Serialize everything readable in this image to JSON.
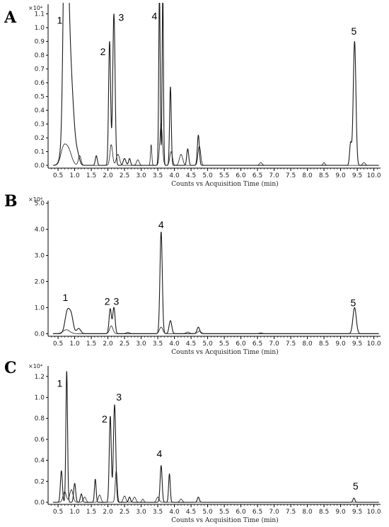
{
  "chart_data": [
    {
      "panel": "A",
      "type": "line",
      "multiplier": "×10⁴",
      "xlabel": "Counts vs Acquisition Time (min)",
      "xlim": [
        0.2,
        10.2
      ],
      "ylim": [
        -0.02,
        1.17
      ],
      "xticks": [
        "0.5",
        "1.0",
        "1.5",
        "2.0",
        "2.5",
        "3.0",
        "3.5",
        "4.0",
        "4.5",
        "5.0",
        "5.5",
        "6.0",
        "6.5",
        "7.0",
        "7.5",
        "8.0",
        "8.5",
        "9.0",
        "9.5",
        "10.0"
      ],
      "yticks": [
        "0.0",
        "0.1",
        "0.2",
        "0.3",
        "0.4",
        "0.5",
        "0.6",
        "0.7",
        "0.8",
        "0.9",
        "1.0",
        "1.1"
      ],
      "peak_labels": [
        {
          "text": "1",
          "x": 0.55,
          "y": 1.03
        },
        {
          "text": "2",
          "x": 1.85,
          "y": 0.8
        },
        {
          "text": "3",
          "x": 2.4,
          "y": 1.05
        },
        {
          "text": "4",
          "x": 3.4,
          "y": 1.06
        },
        {
          "text": "5",
          "x": 9.4,
          "y": 0.95
        }
      ],
      "series": [
        {
          "peaks": [
            [
              0.7,
              0.92,
              0.05
            ],
            [
              0.75,
              0.95,
              0.06
            ],
            [
              0.82,
              0.85,
              0.12
            ],
            [
              1.1,
              0.04,
              0.05
            ],
            [
              1.65,
              0.07,
              0.03
            ],
            [
              2.05,
              0.9,
              0.03
            ],
            [
              2.18,
              1.1,
              0.035
            ],
            [
              2.5,
              0.05,
              0.04
            ],
            [
              2.65,
              0.05,
              0.03
            ],
            [
              3.55,
              1.25,
              0.022
            ],
            [
              3.65,
              1.25,
              0.02
            ],
            [
              3.88,
              0.57,
              0.025
            ],
            [
              4.4,
              0.12,
              0.03
            ],
            [
              4.72,
              0.22,
              0.03
            ],
            [
              9.3,
              0.16,
              0.03
            ],
            [
              9.42,
              0.9,
              0.04
            ]
          ]
        },
        {
          "peaks": [
            [
              0.65,
              0.1,
              0.08
            ],
            [
              0.8,
              0.12,
              0.1
            ],
            [
              1.15,
              0.07,
              0.04
            ],
            [
              2.1,
              0.15,
              0.04
            ],
            [
              2.3,
              0.08,
              0.05
            ],
            [
              2.9,
              0.04,
              0.04
            ],
            [
              3.3,
              0.15,
              0.02
            ],
            [
              3.6,
              0.3,
              0.04
            ],
            [
              3.9,
              0.1,
              0.04
            ],
            [
              4.2,
              0.08,
              0.05
            ],
            [
              4.75,
              0.14,
              0.04
            ],
            [
              6.6,
              0.02,
              0.04
            ],
            [
              8.5,
              0.02,
              0.03
            ],
            [
              9.7,
              0.02,
              0.04
            ]
          ]
        }
      ]
    },
    {
      "panel": "B",
      "type": "line",
      "multiplier": "×10⁴",
      "xlabel": "Counts vs Acquisition Time (min)",
      "xlim": [
        0.2,
        10.2
      ],
      "ylim": [
        -0.1,
        5.1
      ],
      "xticks": [
        "0.5",
        "1.0",
        "1.5",
        "2.0",
        "2.5",
        "3.0",
        "3.5",
        "4.0",
        "4.5",
        "5.0",
        "5.5",
        "6.0",
        "6.5",
        "7.0",
        "7.5",
        "8.0",
        "8.5",
        "9.0",
        "9.5",
        "10.0"
      ],
      "yticks": [
        "0.0",
        "1.0",
        "2.0",
        "3.0",
        "4.0",
        "5.0"
      ],
      "peak_labels": [
        {
          "text": "1",
          "x": 0.72,
          "y": 1.25
        },
        {
          "text": "2",
          "x": 1.98,
          "y": 1.1
        },
        {
          "text": "3",
          "x": 2.25,
          "y": 1.1
        },
        {
          "text": "4",
          "x": 3.6,
          "y": 4.05
        },
        {
          "text": "5",
          "x": 9.38,
          "y": 1.05
        }
      ],
      "series": [
        {
          "peaks": [
            [
              0.78,
              0.85,
              0.07
            ],
            [
              0.9,
              0.6,
              0.06
            ],
            [
              1.12,
              0.2,
              0.06
            ],
            [
              2.07,
              0.95,
              0.035
            ],
            [
              2.18,
              1.0,
              0.035
            ],
            [
              3.6,
              3.9,
              0.035
            ],
            [
              3.88,
              0.5,
              0.04
            ],
            [
              4.72,
              0.25,
              0.04
            ],
            [
              9.42,
              1.0,
              0.05
            ]
          ]
        },
        {
          "peaks": [
            [
              0.75,
              0.15,
              0.1
            ],
            [
              2.1,
              0.3,
              0.05
            ],
            [
              2.6,
              0.05,
              0.05
            ],
            [
              3.6,
              0.25,
              0.05
            ],
            [
              4.4,
              0.06,
              0.05
            ],
            [
              4.75,
              0.1,
              0.05
            ],
            [
              6.6,
              0.03,
              0.05
            ]
          ]
        }
      ]
    },
    {
      "panel": "C",
      "type": "line",
      "multiplier": "×10⁴",
      "xlabel": "Counts vs Acquisition Time (min)",
      "xlim": [
        0.2,
        10.2
      ],
      "ylim": [
        -0.02,
        1.3
      ],
      "xticks": [
        "0.5",
        "1.0",
        "1.5",
        "2.0",
        "2.5",
        "3.0",
        "3.5",
        "4.0",
        "4.5",
        "5.0",
        "5.5",
        "6.0",
        "6.5",
        "7.0",
        "7.5",
        "8.0",
        "8.5",
        "9.0",
        "9.5",
        "10.0"
      ],
      "yticks": [
        "0.0",
        "0.2",
        "0.4",
        "0.6",
        "0.8",
        "1.0",
        "1.2"
      ],
      "peak_labels": [
        {
          "text": "1",
          "x": 0.55,
          "y": 1.1
        },
        {
          "text": "2",
          "x": 1.9,
          "y": 0.76
        },
        {
          "text": "3",
          "x": 2.33,
          "y": 0.97
        },
        {
          "text": "4",
          "x": 3.55,
          "y": 0.43
        },
        {
          "text": "5",
          "x": 9.45,
          "y": 0.12
        }
      ],
      "series": [
        {
          "peaks": [
            [
              0.6,
              0.3,
              0.03
            ],
            [
              0.76,
              1.25,
              0.025
            ],
            [
              1.0,
              0.18,
              0.03
            ],
            [
              1.2,
              0.08,
              0.03
            ],
            [
              1.62,
              0.22,
              0.025
            ],
            [
              2.07,
              0.82,
              0.03
            ],
            [
              2.2,
              0.93,
              0.035
            ],
            [
              2.65,
              0.05,
              0.03
            ],
            [
              3.6,
              0.35,
              0.03
            ],
            [
              3.85,
              0.27,
              0.025
            ],
            [
              4.72,
              0.05,
              0.03
            ],
            [
              9.4,
              0.04,
              0.03
            ]
          ]
        },
        {
          "peaks": [
            [
              0.7,
              0.1,
              0.05
            ],
            [
              0.9,
              0.12,
              0.05
            ],
            [
              1.3,
              0.05,
              0.04
            ],
            [
              1.75,
              0.07,
              0.04
            ],
            [
              2.25,
              0.3,
              0.03
            ],
            [
              2.5,
              0.06,
              0.04
            ],
            [
              2.8,
              0.05,
              0.04
            ],
            [
              3.05,
              0.03,
              0.03
            ],
            [
              3.5,
              0.05,
              0.04
            ],
            [
              4.2,
              0.03,
              0.04
            ]
          ]
        }
      ]
    }
  ]
}
